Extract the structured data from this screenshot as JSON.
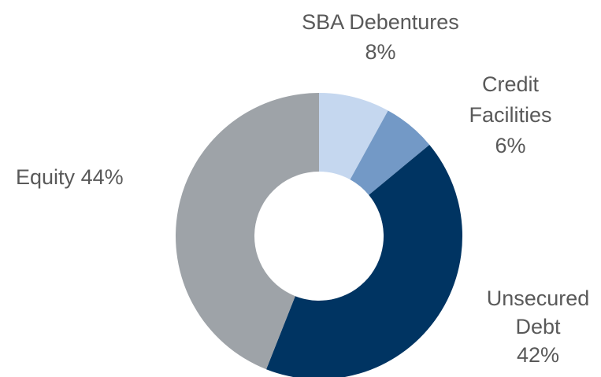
{
  "chart_data": {
    "type": "pie",
    "categories": [
      "SBA Debentures",
      "Credit Facilities",
      "Unsecured Debt",
      "Equity"
    ],
    "values": [
      8,
      6,
      42,
      44
    ],
    "value_labels": [
      "8%",
      "6%",
      "42%",
      "44%"
    ],
    "colors": [
      "#c5d7ef",
      "#7399c6",
      "#003462",
      "#9ea3a8"
    ]
  }
}
